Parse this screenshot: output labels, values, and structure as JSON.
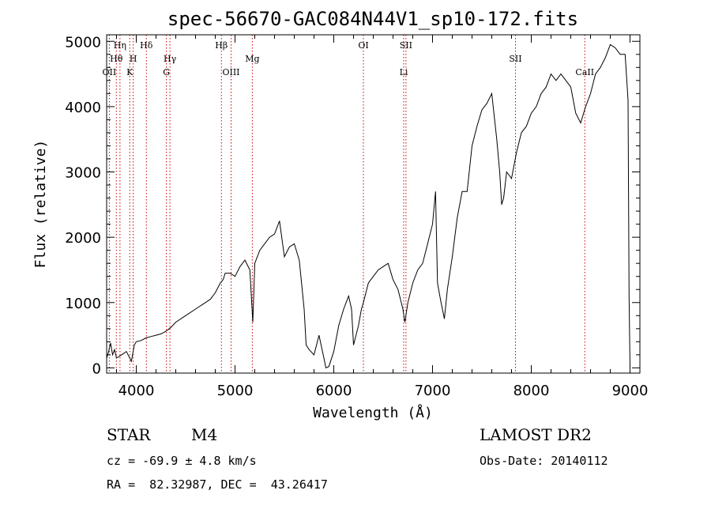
{
  "chart_data": {
    "type": "line",
    "title": "spec-56670-GAC084N44V1_sp10-172.fits",
    "xlabel": "Wavelength (Å)",
    "ylabel": "Flux (relative)",
    "xlim": [
      3700,
      9100
    ],
    "ylim": [
      -80,
      5100
    ],
    "xticks": [
      4000,
      5000,
      6000,
      7000,
      8000,
      9000
    ],
    "yticks": [
      0,
      1000,
      2000,
      3000,
      4000,
      5000
    ],
    "grid": false,
    "series": [
      {
        "x": [
          3700,
          3720,
          3740,
          3760,
          3780,
          3800,
          3850,
          3900,
          3950,
          3980,
          4000,
          4050,
          4100,
          4150,
          4200,
          4250,
          4300,
          4350,
          4400,
          4500,
          4600,
          4700,
          4750,
          4800,
          4850,
          4880,
          4900,
          4950,
          5000,
          5050,
          5100,
          5150,
          5180,
          5200,
          5250,
          5300,
          5350,
          5400,
          5450,
          5500,
          5550,
          5600,
          5650,
          5700,
          5720,
          5750,
          5800,
          5850,
          5900,
          5920,
          5950,
          6000,
          6050,
          6100,
          6150,
          6180,
          6200,
          6250,
          6280,
          6300,
          6350,
          6400,
          6450,
          6500,
          6550,
          6600,
          6650,
          6700,
          6720,
          6750,
          6800,
          6850,
          6900,
          6950,
          7000,
          7030,
          7050,
          7080,
          7100,
          7120,
          7150,
          7200,
          7250,
          7300,
          7350,
          7400,
          7450,
          7500,
          7550,
          7600,
          7650,
          7680,
          7700,
          7720,
          7750,
          7800,
          7850,
          7900,
          7950,
          8000,
          8050,
          8100,
          8150,
          8200,
          8250,
          8300,
          8350,
          8400,
          8450,
          8500,
          8550,
          8600,
          8650,
          8700,
          8750,
          8800,
          8850,
          8900,
          8950,
          8980,
          8990,
          9000
        ],
        "y": [
          150,
          250,
          380,
          200,
          280,
          150,
          200,
          250,
          100,
          350,
          400,
          420,
          460,
          480,
          500,
          520,
          560,
          620,
          700,
          800,
          900,
          1000,
          1050,
          1150,
          1300,
          1350,
          1450,
          1450,
          1400,
          1550,
          1650,
          1500,
          700,
          1600,
          1800,
          1900,
          2000,
          2050,
          2250,
          1700,
          1850,
          1900,
          1650,
          900,
          350,
          280,
          200,
          500,
          150,
          0,
          20,
          250,
          650,
          900,
          1100,
          900,
          350,
          650,
          900,
          1000,
          1300,
          1400,
          1500,
          1550,
          1600,
          1350,
          1200,
          900,
          700,
          1000,
          1300,
          1500,
          1600,
          1900,
          2200,
          2700,
          1300,
          1050,
          900,
          750,
          1200,
          1700,
          2300,
          2700,
          2700,
          3400,
          3700,
          3950,
          4050,
          4200,
          3500,
          3000,
          2500,
          2600,
          3000,
          2900,
          3300,
          3600,
          3700,
          3900,
          4000,
          4200,
          4300,
          4500,
          4400,
          4500,
          4400,
          4300,
          3900,
          3750,
          4000,
          4200,
          4500,
          4600,
          4750,
          4950,
          4900,
          4800,
          4800,
          4100,
          1100,
          0
        ]
      }
    ],
    "spectral_lines": [
      {
        "label": "OII",
        "x": 3727,
        "row": 3
      },
      {
        "label": "Hθ",
        "x": 3798,
        "row": 2
      },
      {
        "label": "Hη",
        "x": 3835,
        "row": 1
      },
      {
        "label": "K",
        "x": 3934,
        "row": 3
      },
      {
        "label": "H",
        "x": 3969,
        "row": 2
      },
      {
        "label": "Hδ",
        "x": 4102,
        "row": 1
      },
      {
        "label": "G",
        "x": 4305,
        "row": 3
      },
      {
        "label": "Hγ",
        "x": 4341,
        "row": 2
      },
      {
        "label": "Hβ",
        "x": 4862,
        "row": 1
      },
      {
        "label": "OIII",
        "x": 4960,
        "row": 3
      },
      {
        "label": "Mg",
        "x": 5175,
        "row": 2
      },
      {
        "label": "OI",
        "x": 6300,
        "row": 1
      },
      {
        "label": "Li",
        "x": 6708,
        "row": 3
      },
      {
        "label": "SII",
        "x": 6731,
        "row": 1
      },
      {
        "label": "SII",
        "x": 7840,
        "row": 2
      },
      {
        "label": "CaII",
        "x": 8542,
        "row": 3
      }
    ]
  },
  "footer": {
    "object_class": "STAR",
    "subclass": "M4",
    "redshift": "cz = -69.9 ± 4.8 km/s",
    "coordinates": "RA =  82.32987, DEC =  43.26417",
    "survey": "LAMOST DR2",
    "obs_date": "Obs-Date: 20140112"
  },
  "colors": {
    "spectrum": "#000000",
    "line_markers": "#cc0000",
    "axes": "#000000",
    "background": "#ffffff"
  }
}
